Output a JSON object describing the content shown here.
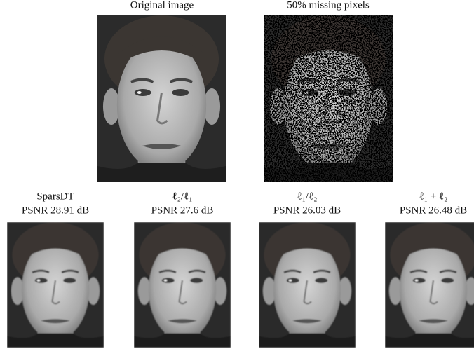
{
  "top_panels": [
    {
      "title": "Original image"
    },
    {
      "title": "50% missing pixels"
    }
  ],
  "bottom_panels": [
    {
      "method": "SparsDT",
      "psnr": "PSNR 28.91 dB"
    },
    {
      "method": "ℓ₂/ℓ₁",
      "psnr": "PSNR 27.6 dB"
    },
    {
      "method": "ℓ₁/ℓ₂",
      "psnr": "PSNR 26.03 dB"
    },
    {
      "method": "ℓ₁ + ℓ₂",
      "psnr": "PSNR 26.48 dB"
    }
  ]
}
